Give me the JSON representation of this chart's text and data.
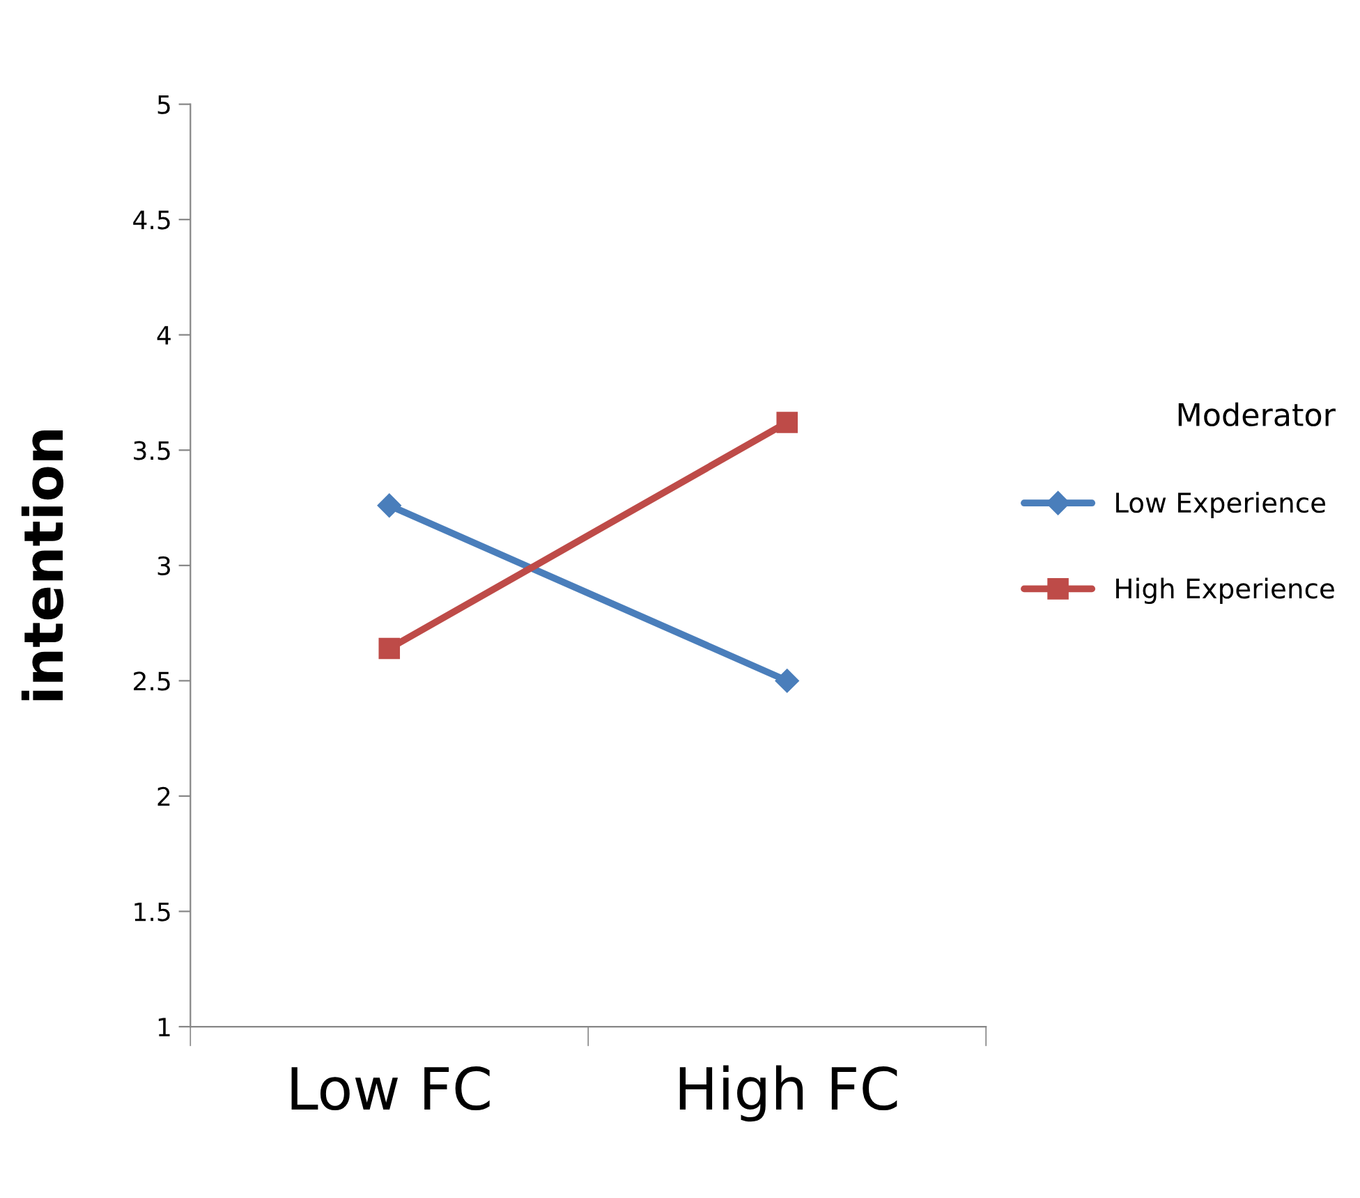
{
  "chart_data": {
    "type": "line",
    "ylabel": "intention",
    "legend_title": "Moderator",
    "categories": [
      "Low FC",
      "High FC"
    ],
    "series": [
      {
        "name": "Low Experience",
        "color": "#4a7ebb",
        "values": [
          3.26,
          2.5
        ],
        "marker": "diamond"
      },
      {
        "name": "High Experience",
        "color": "#be4b48",
        "values": [
          2.64,
          3.62
        ],
        "marker": "square"
      }
    ],
    "ylim": [
      1,
      5
    ],
    "yticks": [
      1,
      1.5,
      2,
      2.5,
      3,
      3.5,
      4,
      4.5,
      5
    ],
    "grid": false,
    "legend": "right",
    "line_style": "solid"
  }
}
